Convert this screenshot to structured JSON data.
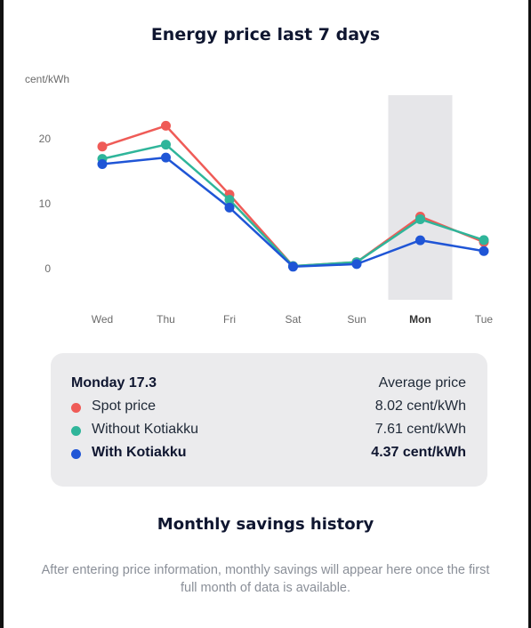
{
  "header": {
    "title": "Energy price last 7 days"
  },
  "colors": {
    "spot": "#ef5b57",
    "without": "#2fb59a",
    "with": "#1f55d6",
    "highlight": "#e6e6e9"
  },
  "chart_data": {
    "type": "line",
    "ylabel": "cent/kWh",
    "categories": [
      "Wed",
      "Thu",
      "Fri",
      "Sat",
      "Sun",
      "Mon",
      "Tue"
    ],
    "highlighted_category": "Mon",
    "ylim": [
      -5,
      27
    ],
    "yticks": [
      0,
      10,
      20
    ],
    "grid": false,
    "series": [
      {
        "name": "Spot price",
        "color": "#ef5b57",
        "values": [
          18.8,
          22.0,
          11.4,
          0.4,
          1.0,
          8.02,
          4.1
        ]
      },
      {
        "name": "Without Kotiakku",
        "color": "#2fb59a",
        "values": [
          16.9,
          19.1,
          10.6,
          0.4,
          1.0,
          7.61,
          4.4
        ]
      },
      {
        "name": "With Kotiakku",
        "color": "#1f55d6",
        "values": [
          16.1,
          17.1,
          9.4,
          0.3,
          0.7,
          4.37,
          2.7
        ]
      }
    ]
  },
  "summary": {
    "date": "Monday 17.3",
    "average_label": "Average price",
    "rows": [
      {
        "name": "Spot price",
        "value": "8.02 cent/kWh",
        "color": "#ef5b57"
      },
      {
        "name": "Without Kotiakku",
        "value": "7.61 cent/kWh",
        "color": "#2fb59a"
      },
      {
        "name": "With Kotiakku",
        "value": "4.37 cent/kWh",
        "color": "#1f55d6"
      }
    ]
  },
  "savings": {
    "title": "Monthly savings history",
    "note": "After entering price information, monthly savings will appear here once the first full month of data is available."
  }
}
